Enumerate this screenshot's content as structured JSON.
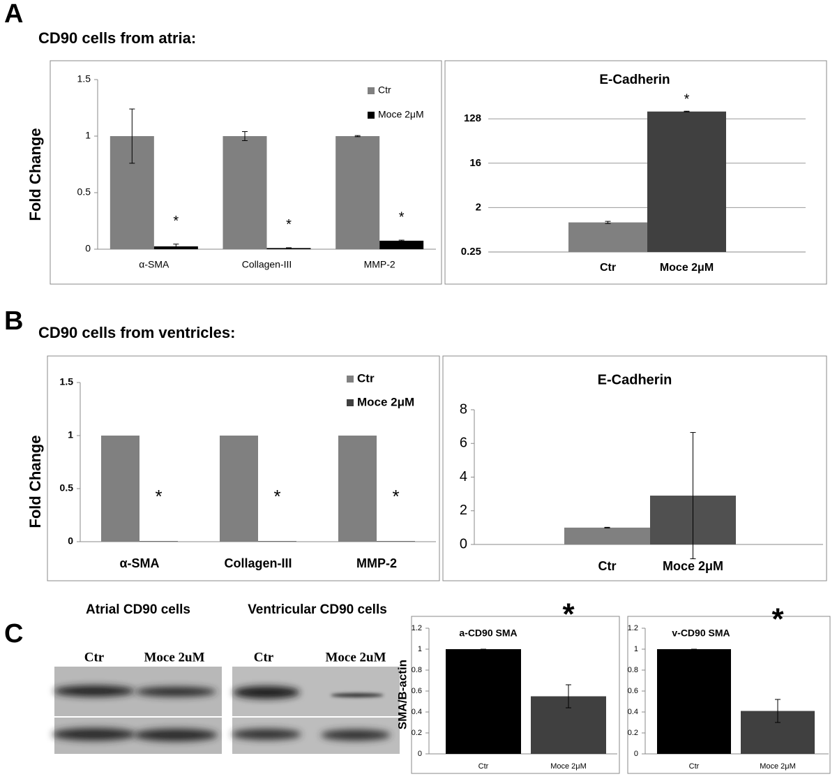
{
  "figure": {
    "panel_a": "A",
    "heading_a": "CD90 cells from atria:",
    "panel_b": "B",
    "heading_b": "CD90 cells from ventricles:",
    "panel_c": "C",
    "blot_atrial_title": "Atrial CD90 cells",
    "blot_ventricular_title": "Ventricular CD90 cells",
    "blot_atrial_lanes": [
      "Ctr",
      "Moce 2uM"
    ],
    "blot_ventricular_lanes": [
      "Ctr",
      "Moce 2uM"
    ]
  },
  "chart_data": [
    {
      "type": "bar",
      "y_label": "Fold Change",
      "categories": [
        "α-SMA",
        "Collagen-III",
        "MMP-2"
      ],
      "series": [
        {
          "name": "Ctr",
          "color": "#808080",
          "values": [
            1,
            1,
            1
          ],
          "errors": [
            0.24,
            0.04,
            0.005
          ]
        },
        {
          "name": "Moce 2μM",
          "color": "#000000",
          "values": [
            0.025,
            0.01,
            0.075
          ],
          "errors": [
            0.02,
            0.003,
            0.005
          ]
        }
      ],
      "annotations": [
        "*",
        "*",
        "*"
      ],
      "ylim": [
        0,
        1.5
      ],
      "yticks": [
        0,
        0.5,
        1,
        1.5
      ],
      "grid": false,
      "legend": "top-right"
    },
    {
      "type": "bar",
      "title": "E-Cadherin",
      "categories": [
        "Ctr",
        "Moce 2μM"
      ],
      "values": [
        1,
        180
      ],
      "errors": [
        0.05,
        3
      ],
      "colors": [
        "#808080",
        "#404040"
      ],
      "annotations": [
        "*"
      ],
      "log_scale": true,
      "log_base": 2,
      "ylim": [
        0.25,
        256
      ],
      "yticks": [
        0.25,
        2,
        16,
        128
      ],
      "grid": true
    },
    {
      "type": "bar",
      "y_label": "Fold Change",
      "categories": [
        "α-SMA",
        "Collagen-III",
        "MMP-2"
      ],
      "series": [
        {
          "name": "Ctr",
          "color": "#808080",
          "values": [
            1,
            1,
            1
          ]
        },
        {
          "name": "Moce 2μM",
          "color": "#404040",
          "values": [
            0.005,
            0.005,
            0.005
          ]
        }
      ],
      "annotations": [
        "*",
        "*",
        "*"
      ],
      "ylim": [
        0,
        1.5
      ],
      "yticks": [
        0,
        0.5,
        1,
        1.5
      ],
      "grid": false,
      "legend": "top-right"
    },
    {
      "type": "bar",
      "title": "E-Cadherin",
      "categories": [
        "Ctr",
        "Moce 2μM"
      ],
      "values": [
        1,
        2.9
      ],
      "errors": [
        0.02,
        3.75
      ],
      "colors": [
        "#808080",
        "#505050"
      ],
      "ylim": [
        0,
        8
      ],
      "yticks": [
        0,
        2,
        4,
        6,
        8
      ],
      "grid": false
    },
    {
      "type": "bar",
      "title": "a-CD90 SMA",
      "y_label": "SMA/B-actin",
      "categories": [
        "Ctr",
        "Moce 2μM"
      ],
      "values": [
        1,
        0.55
      ],
      "errors": [
        0,
        0.11
      ],
      "colors": [
        "#000000",
        "#404040"
      ],
      "annotations": [
        "*"
      ],
      "ylim": [
        0,
        1.2
      ],
      "yticks": [
        0,
        0.2,
        0.4,
        0.6,
        0.8,
        1,
        1.2
      ],
      "grid": false
    },
    {
      "type": "bar",
      "title": "v-CD90 SMA",
      "categories": [
        "Ctr",
        "Moce 2μM"
      ],
      "values": [
        1,
        0.41
      ],
      "errors": [
        0,
        0.11
      ],
      "colors": [
        "#000000",
        "#404040"
      ],
      "annotations": [
        "*"
      ],
      "ylim": [
        0,
        1.2
      ],
      "yticks": [
        0,
        0.2,
        0.4,
        0.6,
        0.8,
        1,
        1.2
      ],
      "grid": false
    }
  ]
}
